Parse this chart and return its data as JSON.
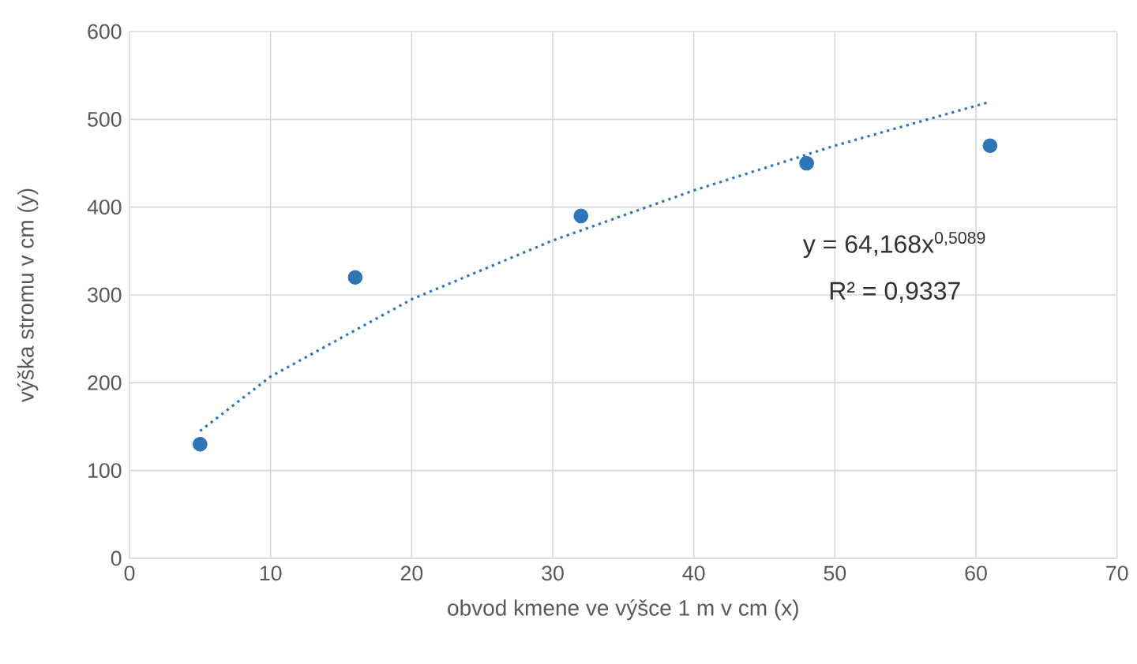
{
  "chart_data": {
    "type": "scatter",
    "xlabel": "obvod kmene ve výšce 1 m v cm (x)",
    "ylabel": "výška stromu v cm (y)",
    "xlim": [
      0,
      70
    ],
    "xticks": [
      0,
      10,
      20,
      30,
      40,
      50,
      60,
      70
    ],
    "ylim": [
      0,
      600
    ],
    "yticks": [
      0,
      100,
      200,
      300,
      400,
      500,
      600
    ],
    "grid": true,
    "series": [
      {
        "color": "#2e75b6",
        "marker": "circle",
        "x": [
          5,
          16,
          32,
          48,
          61
        ],
        "values": [
          130,
          320,
          390,
          450,
          470
        ]
      },
      {
        "type": "line",
        "color": "#2e75b6",
        "marker": "none",
        "line_style": "dotted",
        "x": [
          5,
          10,
          20,
          30,
          40,
          50,
          61
        ],
        "values": [
          145,
          207,
          295,
          362,
          419,
          470,
          520
        ]
      }
    ],
    "annotations": [
      "y = 64,168x$^{0,5089}$",
      "R² = 0,9337"
    ]
  }
}
